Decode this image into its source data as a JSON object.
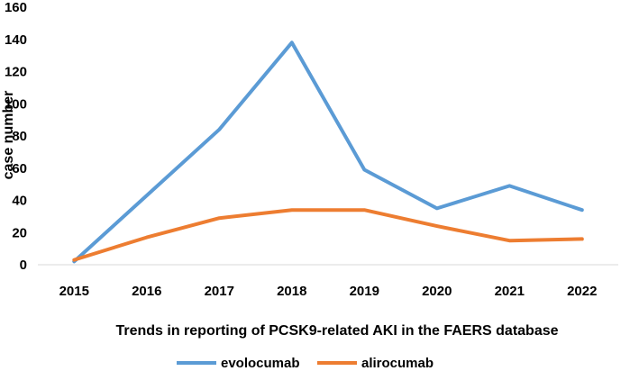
{
  "chart_data": {
    "type": "line",
    "categories": [
      "2015",
      "2016",
      "2017",
      "2018",
      "2019",
      "2020",
      "2021",
      "2022"
    ],
    "series": [
      {
        "name": "evolocumab",
        "color": "#5B9BD5",
        "values": [
          2,
          43,
          84,
          138,
          59,
          35,
          49,
          34
        ]
      },
      {
        "name": "alirocumab",
        "color": "#ED7D31",
        "values": [
          3,
          17,
          29,
          34,
          34,
          24,
          15,
          16
        ]
      }
    ],
    "xlabel": "Trends in reporting of PCSK9-related AKI in the FAERS database",
    "ylabel": "case number",
    "ylim": [
      0,
      160
    ],
    "yticks": [
      "0",
      "20",
      "40",
      "60",
      "80",
      "100",
      "120",
      "140",
      "160"
    ],
    "grid": false,
    "legend_position": "bottom"
  }
}
